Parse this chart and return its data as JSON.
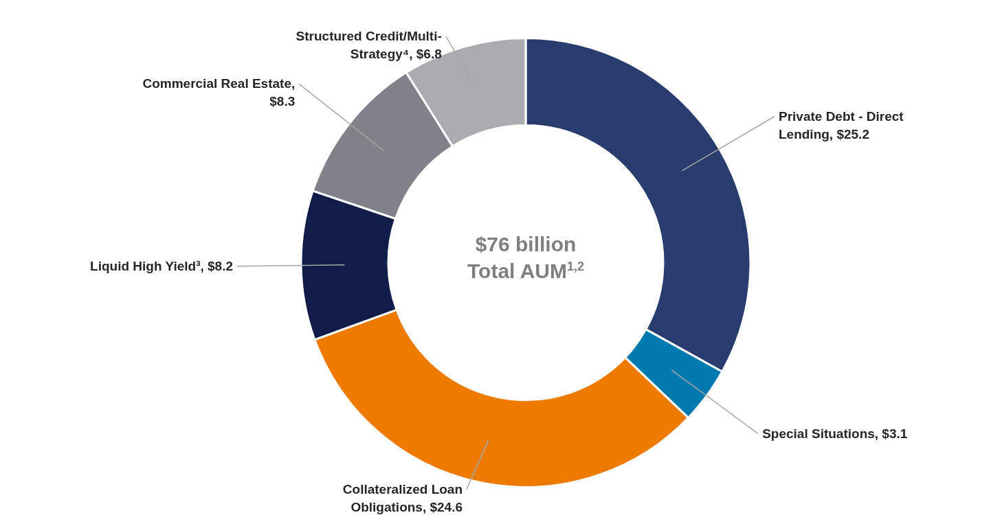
{
  "chart_data": {
    "type": "donut",
    "categories": [
      "Private Debt - Direct Lending, $25.2",
      "Special Situations, $3.1",
      "Collateralized Loan Obligations, $24.6",
      "Liquid High Yield³, $8.2",
      "Commercial Real Estate, $8.3",
      "Structured Credit/Multi-Strategy⁴, $6.8"
    ],
    "values": [
      25.2,
      3.1,
      24.6,
      8.2,
      8.3,
      6.8
    ],
    "colors": [
      "#283c6e",
      "#0079ae",
      "#ee7a00",
      "#111c48",
      "#80828a",
      "#abacb1"
    ],
    "annotations": [
      "$76 billion",
      "Total AUM$^{1,2}$"
    ]
  }
}
